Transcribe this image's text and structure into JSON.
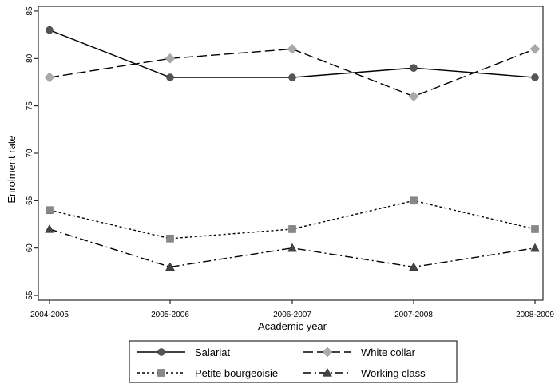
{
  "chart_data": {
    "type": "line",
    "title": "",
    "xlabel": "Academic year",
    "ylabel": "Enrolment rate",
    "categories": [
      "2004-2005",
      "2005-2006",
      "2006-2007",
      "2007-2008",
      "2008-2009"
    ],
    "ylim": [
      54.5,
      85.5
    ],
    "yticks": [
      55,
      60,
      65,
      70,
      75,
      80,
      85
    ],
    "grid": false,
    "legend_position": "bottom",
    "series": [
      {
        "name": "Salariat",
        "values": [
          83,
          78,
          78,
          79,
          78
        ],
        "marker": "circle",
        "dash": "solid",
        "color": "#555555"
      },
      {
        "name": "White collar",
        "values": [
          78,
          80,
          81,
          76,
          81
        ],
        "marker": "diamond",
        "dash": "long-dash",
        "color": "#aaaaaa"
      },
      {
        "name": "Petite bourgeoisie",
        "values": [
          64,
          61,
          62,
          65,
          62
        ],
        "marker": "square",
        "dash": "dotted",
        "color": "#888888"
      },
      {
        "name": "Working class",
        "values": [
          62,
          58,
          60,
          58,
          60
        ],
        "marker": "triangle",
        "dash": "dash-dot",
        "color": "#444444"
      }
    ]
  }
}
